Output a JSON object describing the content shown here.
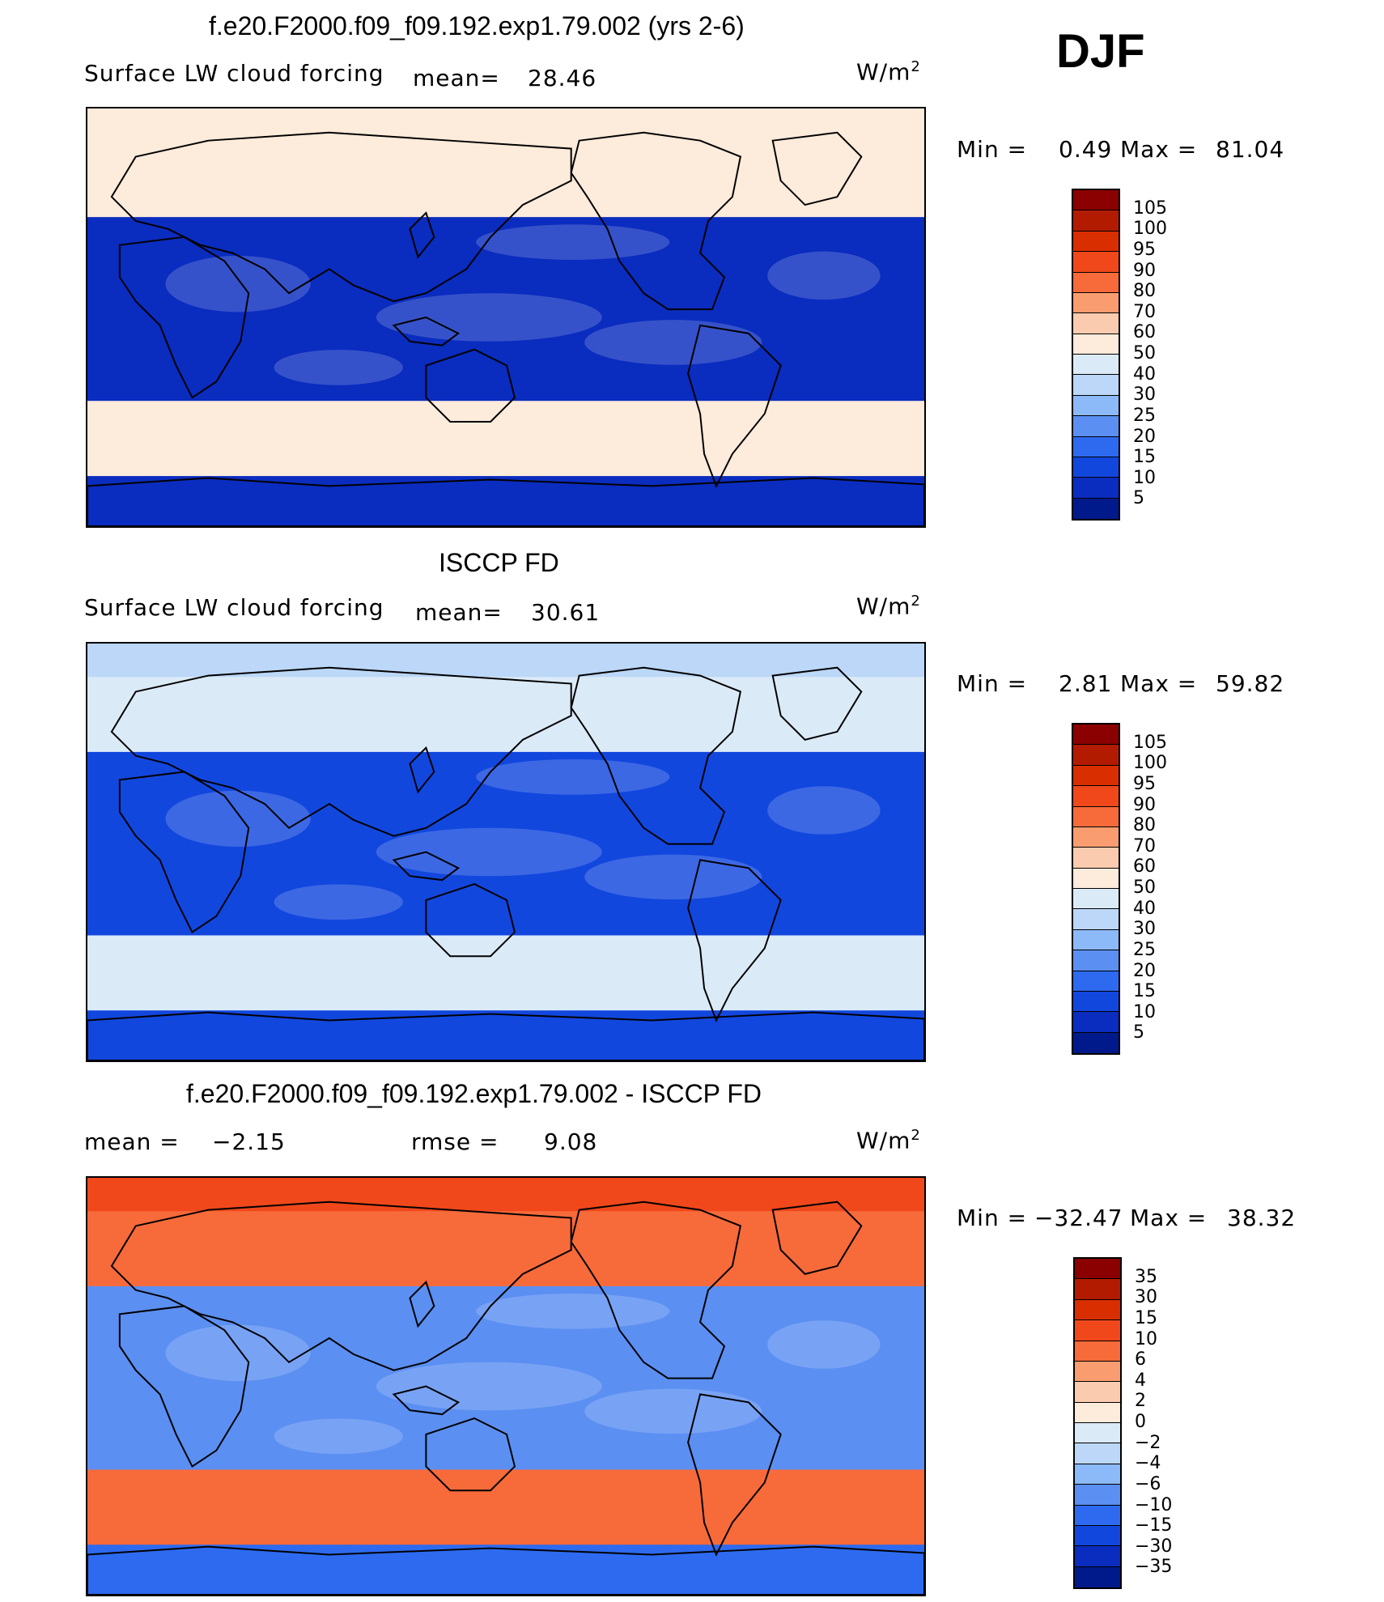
{
  "season": "DJF",
  "chart_data": [
    {
      "type": "heatmap",
      "title": "f.e20.F2000.f09_f09.192.exp1.79.002 (yrs 2-6)",
      "variable": "Surface LW cloud forcing",
      "mean_label": "mean=",
      "mean": "28.46",
      "units": "W/m",
      "units_exp": "2",
      "min_label": "Min =",
      "min": "0.49",
      "max_label": "Max =",
      "max": "81.04",
      "colorbar_levels": [
        "105",
        "100",
        "95",
        "90",
        "80",
        "70",
        "60",
        "50",
        "40",
        "30",
        "25",
        "20",
        "15",
        "10",
        "5"
      ],
      "colorbar_colors": [
        "#8b0000",
        "#b31b00",
        "#d92e00",
        "#f0481b",
        "#f76a3a",
        "#f99d70",
        "#fbcbb0",
        "#fdebdb",
        "#dbeaf7",
        "#bcd7f7",
        "#8cb9f7",
        "#5b8ff2",
        "#2d6aef",
        "#1247de",
        "#0a2cbf",
        "#001a8c"
      ],
      "fill_model": {
        "tropics_level": "10",
        "midlat_level": "60",
        "arctic_level": "60",
        "antarctic_level": "10"
      }
    },
    {
      "type": "heatmap",
      "title": "ISCCP FD",
      "variable": "Surface LW cloud forcing",
      "mean_label": "mean=",
      "mean": "30.61",
      "units": "W/m",
      "units_exp": "2",
      "min_label": "Min =",
      "min": "2.81",
      "max_label": "Max =",
      "max": "59.82",
      "colorbar_levels": [
        "105",
        "100",
        "95",
        "90",
        "80",
        "70",
        "60",
        "50",
        "40",
        "30",
        "25",
        "20",
        "15",
        "10",
        "5"
      ],
      "colorbar_colors": [
        "#8b0000",
        "#b31b00",
        "#d92e00",
        "#f0481b",
        "#f76a3a",
        "#f99d70",
        "#fbcbb0",
        "#fdebdb",
        "#dbeaf7",
        "#bcd7f7",
        "#8cb9f7",
        "#5b8ff2",
        "#2d6aef",
        "#1247de",
        "#0a2cbf",
        "#001a8c"
      ],
      "fill_model": {
        "tropics_level": "15",
        "midlat_level": "50",
        "arctic_level": "40",
        "antarctic_level": "15"
      }
    },
    {
      "type": "heatmap",
      "title": "f.e20.F2000.f09_f09.192.exp1.79.002 - ISCCP FD",
      "mean_label": "mean =",
      "mean": "−2.15",
      "rmse_label": "rmse =",
      "rmse": "9.08",
      "units": "W/m",
      "units_exp": "2",
      "min_label": "Min =",
      "min": "−32.47",
      "max_label": "Max =",
      "max": "38.32",
      "colorbar_levels": [
        "35",
        "30",
        "15",
        "10",
        "6",
        "4",
        "2",
        "0",
        "−2",
        "−4",
        "−6",
        "−10",
        "−15",
        "−30",
        "−35"
      ],
      "colorbar_colors": [
        "#8b0000",
        "#b31b00",
        "#d92e00",
        "#f0481b",
        "#f76a3a",
        "#f99d70",
        "#fbcbb0",
        "#fdebdb",
        "#dbeaf7",
        "#bcd7f7",
        "#8cb9f7",
        "#5b8ff2",
        "#2d6aef",
        "#1247de",
        "#0a2cbf",
        "#001a8c"
      ],
      "fill_model": {
        "tropics_level": "−6",
        "midlat_level": "10",
        "arctic_level": "15",
        "antarctic_level": "−10"
      }
    }
  ]
}
